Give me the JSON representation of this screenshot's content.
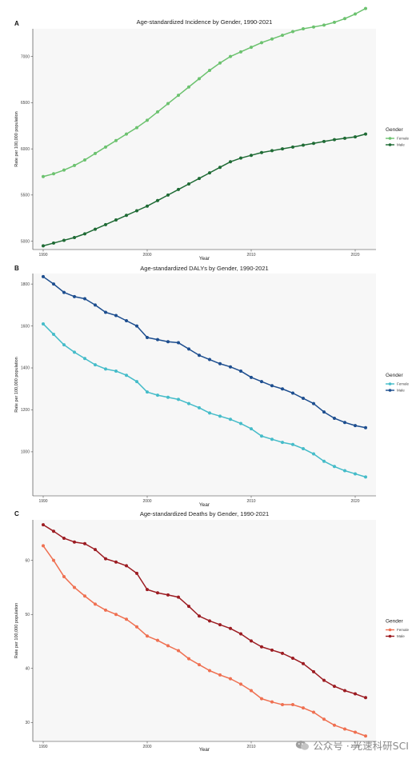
{
  "chart_data": [
    {
      "type": "line",
      "panel_label": "A",
      "title": "Age-standardized Incidence by Gender, 1990-2021",
      "xlabel": "Year",
      "ylabel": "Rate per 100,000 population",
      "x": [
        1990,
        1991,
        1992,
        1993,
        1994,
        1995,
        1996,
        1997,
        1998,
        1999,
        2000,
        2001,
        2002,
        2003,
        2004,
        2005,
        2006,
        2007,
        2008,
        2009,
        2010,
        2011,
        2012,
        2013,
        2014,
        2015,
        2016,
        2017,
        2018,
        2019,
        2020,
        2021
      ],
      "xticks": [
        1990,
        2000,
        2010,
        2020
      ],
      "xtick_labels": [
        "1990",
        "2000",
        "2010",
        "2020"
      ],
      "xlim": [
        1989,
        2022
      ],
      "ylim": [
        4910,
        7300
      ],
      "yticks": [
        5000,
        5500,
        6000,
        6500,
        7000
      ],
      "ytick_labels": [
        "5000",
        "5500",
        "6000",
        "6500",
        "7000"
      ],
      "legend": {
        "title": "Gender",
        "position": "right"
      },
      "series": [
        {
          "name": "Female",
          "color": "#6cc26f",
          "values": [
            5700,
            5730,
            5770,
            5820,
            5880,
            5950,
            6020,
            6090,
            6160,
            6230,
            6310,
            6400,
            6490,
            6580,
            6670,
            6760,
            6850,
            6930,
            7000,
            7050,
            7100,
            7150,
            7190,
            7230,
            7270,
            7300,
            7320,
            7340,
            7370,
            7410,
            7460,
            7520
          ]
        },
        {
          "name": "Male",
          "color": "#1f6b35",
          "values": [
            4950,
            4980,
            5010,
            5040,
            5080,
            5130,
            5180,
            5230,
            5280,
            5330,
            5380,
            5440,
            5500,
            5560,
            5620,
            5680,
            5740,
            5800,
            5860,
            5900,
            5930,
            5960,
            5980,
            6000,
            6020,
            6040,
            6060,
            6080,
            6100,
            6115,
            6130,
            6160
          ]
        }
      ]
    },
    {
      "type": "line",
      "panel_label": "B",
      "title": "Age-standardized DALYs by Gender, 1990-2021",
      "xlabel": "Year",
      "ylabel": "Rate per 100,000 population",
      "x": [
        1990,
        1991,
        1992,
        1993,
        1994,
        1995,
        1996,
        1997,
        1998,
        1999,
        2000,
        2001,
        2002,
        2003,
        2004,
        2005,
        2006,
        2007,
        2008,
        2009,
        2010,
        2011,
        2012,
        2013,
        2014,
        2015,
        2016,
        2017,
        2018,
        2019,
        2020,
        2021
      ],
      "xticks": [
        1990,
        2000,
        2010,
        2020
      ],
      "xtick_labels": [
        "1990",
        "2000",
        "2010",
        "2020"
      ],
      "xlim": [
        1989,
        2022
      ],
      "ylim": [
        790,
        1850
      ],
      "yticks": [
        1000,
        1200,
        1400,
        1600,
        1800
      ],
      "ytick_labels": [
        "1000",
        "1200",
        "1400",
        "1600",
        "1800"
      ],
      "legend": {
        "title": "Gender",
        "position": "right"
      },
      "series": [
        {
          "name": "Female",
          "color": "#45bcc9",
          "values": [
            1610,
            1560,
            1510,
            1475,
            1445,
            1415,
            1395,
            1385,
            1365,
            1335,
            1285,
            1270,
            1260,
            1250,
            1230,
            1210,
            1185,
            1170,
            1155,
            1135,
            1110,
            1075,
            1060,
            1045,
            1035,
            1015,
            990,
            955,
            930,
            910,
            895,
            880
          ]
        },
        {
          "name": "Male",
          "color": "#1d4e8f",
          "values": [
            1835,
            1800,
            1760,
            1740,
            1730,
            1700,
            1665,
            1650,
            1625,
            1600,
            1545,
            1535,
            1525,
            1520,
            1490,
            1460,
            1440,
            1420,
            1405,
            1385,
            1355,
            1335,
            1315,
            1300,
            1280,
            1255,
            1230,
            1190,
            1160,
            1140,
            1125,
            1115
          ]
        }
      ]
    },
    {
      "type": "line",
      "panel_label": "C",
      "title": "Age-standardized Deaths by Gender, 1990-2021",
      "xlabel": "Year",
      "ylabel": "Rate per 100,000 population",
      "x": [
        1990,
        1991,
        1992,
        1993,
        1994,
        1995,
        1996,
        1997,
        1998,
        1999,
        2000,
        2001,
        2002,
        2003,
        2004,
        2005,
        2006,
        2007,
        2008,
        2009,
        2010,
        2011,
        2012,
        2013,
        2014,
        2015,
        2016,
        2017,
        2018,
        2019,
        2020,
        2021
      ],
      "xticks": [
        1990,
        2000,
        2010,
        2020
      ],
      "xtick_labels": [
        "1990",
        "2000",
        "2010",
        "2020"
      ],
      "xlim": [
        1989,
        2022
      ],
      "ylim": [
        26.5,
        67.5
      ],
      "yticks": [
        30,
        40,
        50,
        60
      ],
      "ytick_labels": [
        "30",
        "40",
        "50",
        "60"
      ],
      "legend": {
        "title": "Gender",
        "position": "right"
      },
      "series": [
        {
          "name": "Female",
          "color": "#ef7051",
          "values": [
            62.7,
            60.0,
            57.0,
            55.0,
            53.4,
            51.9,
            50.8,
            50.0,
            49.1,
            47.7,
            46.0,
            45.2,
            44.2,
            43.3,
            41.8,
            40.7,
            39.6,
            38.8,
            38.1,
            37.1,
            35.9,
            34.4,
            33.8,
            33.3,
            33.3,
            32.7,
            31.9,
            30.6,
            29.5,
            28.8,
            28.2,
            27.5
          ]
        },
        {
          "name": "Male",
          "color": "#9c1c22",
          "values": [
            66.6,
            65.4,
            64.1,
            63.4,
            63.1,
            62.0,
            60.3,
            59.7,
            59.0,
            57.6,
            54.6,
            54.0,
            53.6,
            53.2,
            51.5,
            49.7,
            48.8,
            48.1,
            47.4,
            46.4,
            45.1,
            44.0,
            43.4,
            42.8,
            41.9,
            40.9,
            39.4,
            37.8,
            36.7,
            35.9,
            35.3,
            34.6
          ]
        }
      ]
    }
  ],
  "watermark": {
    "text": "公众号 · 光速科研SCI",
    "icon": "wechat-icon"
  }
}
